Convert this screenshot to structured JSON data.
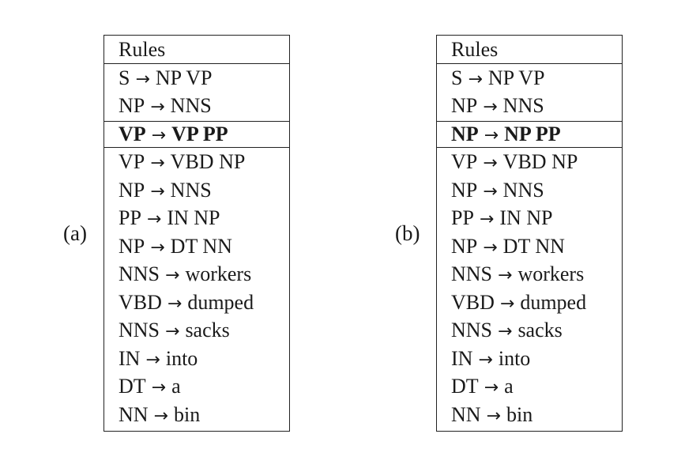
{
  "tables": [
    {
      "label": "(a)",
      "header": "Rules",
      "rules": [
        {
          "lhs": "S",
          "rhs": "NP VP",
          "bold": false
        },
        {
          "lhs": "NP",
          "rhs": "NNS",
          "bold": false
        },
        {
          "lhs": "VP",
          "rhs": "VP PP",
          "bold": true
        },
        {
          "lhs": "VP",
          "rhs": "VBD NP",
          "bold": false
        },
        {
          "lhs": "NP",
          "rhs": "NNS",
          "bold": false
        },
        {
          "lhs": "PP",
          "rhs": "IN NP",
          "bold": false
        },
        {
          "lhs": "NP",
          "rhs": "DT NN",
          "bold": false
        },
        {
          "lhs": "NNS",
          "rhs": "workers",
          "bold": false
        },
        {
          "lhs": "VBD",
          "rhs": "dumped",
          "bold": false
        },
        {
          "lhs": "NNS",
          "rhs": "sacks",
          "bold": false
        },
        {
          "lhs": "IN",
          "rhs": "into",
          "bold": false
        },
        {
          "lhs": "DT",
          "rhs": "a",
          "bold": false
        },
        {
          "lhs": "NN",
          "rhs": "bin",
          "bold": false
        }
      ]
    },
    {
      "label": "(b)",
      "header": "Rules",
      "rules": [
        {
          "lhs": "S",
          "rhs": "NP VP",
          "bold": false
        },
        {
          "lhs": "NP",
          "rhs": "NNS",
          "bold": false
        },
        {
          "lhs": "NP",
          "rhs": "NP PP",
          "bold": true
        },
        {
          "lhs": "VP",
          "rhs": "VBD NP",
          "bold": false
        },
        {
          "lhs": "NP",
          "rhs": "NNS",
          "bold": false
        },
        {
          "lhs": "PP",
          "rhs": "IN NP",
          "bold": false
        },
        {
          "lhs": "NP",
          "rhs": "DT NN",
          "bold": false
        },
        {
          "lhs": "NNS",
          "rhs": "workers",
          "bold": false
        },
        {
          "lhs": "VBD",
          "rhs": "dumped",
          "bold": false
        },
        {
          "lhs": "NNS",
          "rhs": "sacks",
          "bold": false
        },
        {
          "lhs": "IN",
          "rhs": "into",
          "bold": false
        },
        {
          "lhs": "DT",
          "rhs": "a",
          "bold": false
        },
        {
          "lhs": "NN",
          "rhs": "bin",
          "bold": false
        }
      ]
    }
  ]
}
